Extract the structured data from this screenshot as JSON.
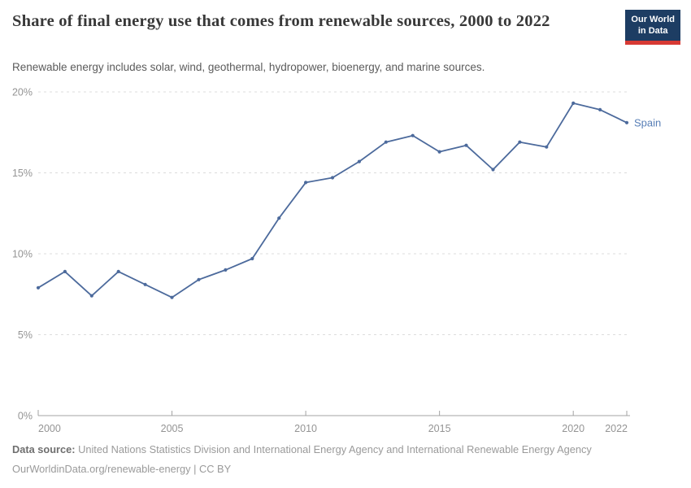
{
  "header": {
    "title": "Share of final energy use that comes from renewable sources, 2000 to 2022",
    "subtitle": "Renewable energy includes solar, wind, geothermal, hydropower, bioenergy, and marine sources.",
    "logo": {
      "line1": "Our World",
      "line2": "in Data"
    }
  },
  "chart_data": {
    "type": "line",
    "title": "Share of final energy use that comes from renewable sources, 2000 to 2022",
    "x": [
      2000,
      2001,
      2002,
      2003,
      2004,
      2005,
      2006,
      2007,
      2008,
      2009,
      2010,
      2011,
      2012,
      2013,
      2014,
      2015,
      2016,
      2017,
      2018,
      2019,
      2020,
      2021,
      2022
    ],
    "series": [
      {
        "name": "Spain",
        "color": "#4C6A9C",
        "label_color": "#577eb6",
        "values": [
          7.9,
          8.9,
          7.4,
          8.9,
          8.1,
          7.3,
          8.4,
          9.0,
          9.7,
          12.2,
          14.4,
          14.7,
          15.7,
          16.9,
          17.3,
          16.3,
          16.7,
          15.2,
          16.9,
          16.6,
          19.3,
          18.9,
          18.1
        ]
      }
    ],
    "xlim": [
      2000,
      2022
    ],
    "ylim": [
      0,
      20
    ],
    "yticks": [
      {
        "value": 0,
        "label": "0%"
      },
      {
        "value": 5,
        "label": "5%"
      },
      {
        "value": 10,
        "label": "10%"
      },
      {
        "value": 15,
        "label": "15%"
      },
      {
        "value": 20,
        "label": "20%"
      }
    ],
    "xticks": [
      {
        "value": 2000,
        "label": "2000"
      },
      {
        "value": 2005,
        "label": "2005"
      },
      {
        "value": 2010,
        "label": "2010"
      },
      {
        "value": 2015,
        "label": "2015"
      },
      {
        "value": 2020,
        "label": "2020"
      },
      {
        "value": 2022,
        "label": "2022"
      }
    ],
    "grid": "horizontal-dashed",
    "legend": "end-of-line-label"
  },
  "colors": {
    "line": "#4C6A9C",
    "logo_bg": "#1d3d63",
    "logo_red": "#d73a34",
    "grid": "#dcdcdc",
    "tick_text": "#949494"
  },
  "footer": {
    "datasource_label": "Data source:",
    "datasource_text": "United Nations Statistics Division and International Energy Agency and International Renewable Energy Agency",
    "url": "OurWorldinData.org/renewable-energy",
    "separator": " | ",
    "license": "CC BY"
  }
}
